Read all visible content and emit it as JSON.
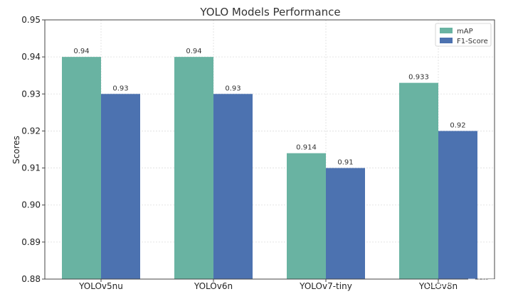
{
  "chart_data": {
    "type": "bar",
    "title": "YOLO Models Performance",
    "xlabel": "",
    "ylabel": "Scores",
    "ylim": [
      0.88,
      0.95
    ],
    "yticks": [
      0.88,
      0.89,
      0.9,
      0.91,
      0.92,
      0.93,
      0.94,
      0.95
    ],
    "ytick_labels": [
      "0.88",
      "0.89",
      "0.90",
      "0.91",
      "0.92",
      "0.93",
      "0.94",
      "0.95"
    ],
    "categories": [
      "YOLOv5nu",
      "YOLOv6n",
      "YOLOv7-tiny",
      "YOLOv8n"
    ],
    "series": [
      {
        "name": "mAP",
        "color": "#69b3a2",
        "values": [
          0.94,
          0.94,
          0.914,
          0.933
        ],
        "labels": [
          "0.94",
          "0.94",
          "0.914",
          "0.933"
        ]
      },
      {
        "name": "F1-Score",
        "color": "#4c72b0",
        "values": [
          0.93,
          0.93,
          0.91,
          0.92
        ],
        "labels": [
          "0.93",
          "0.93",
          "0.91",
          "0.92"
        ]
      }
    ],
    "grid": true,
    "legend_position": "top-right"
  },
  "watermark": {
    "text": "CSDN @思绪无限"
  }
}
